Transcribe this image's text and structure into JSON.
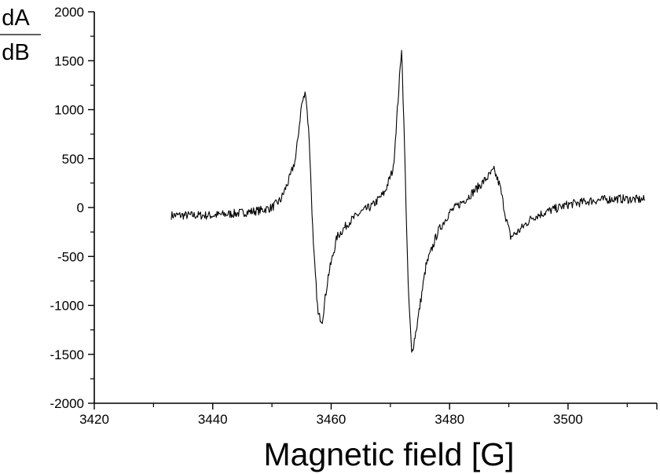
{
  "chart_data": {
    "type": "line",
    "title": "",
    "xlabel": "Magnetic field [G]",
    "ylabel": {
      "numerator": "dA",
      "denominator": "dB"
    },
    "xlim": [
      3420,
      3515
    ],
    "ylim": [
      -2000,
      2000
    ],
    "x_ticks": [
      3420,
      3440,
      3460,
      3480,
      3500
    ],
    "y_ticks": [
      -2000,
      -1500,
      -1000,
      -500,
      0,
      500,
      1000,
      1500,
      2000
    ],
    "grid": false,
    "legend": "none",
    "line_color": "#000000",
    "series": [
      {
        "x": [
          3433,
          3436,
          3440,
          3444,
          3448,
          3450,
          3451.5,
          3453,
          3454,
          3455,
          3455.7,
          3456.3,
          3457,
          3457.8,
          3458.5,
          3459.5,
          3461,
          3463,
          3465,
          3467,
          3469,
          3470.5,
          3471.3,
          3471.9,
          3472.4,
          3473,
          3473.6,
          3474.5,
          3476,
          3478,
          3480,
          3483,
          3485.5,
          3487.5,
          3488.5,
          3489.5,
          3490.3,
          3491.5,
          3494,
          3497,
          3500,
          3504,
          3508,
          3513
        ],
        "y": [
          -80,
          -80,
          -80,
          -60,
          -30,
          0,
          80,
          300,
          500,
          1050,
          1180,
          700,
          -400,
          -1100,
          -1150,
          -700,
          -300,
          -150,
          -50,
          20,
          150,
          400,
          1100,
          1640,
          600,
          -800,
          -1500,
          -1200,
          -600,
          -250,
          -50,
          100,
          250,
          380,
          220,
          -100,
          -300,
          -250,
          -100,
          -30,
          30,
          70,
          90,
          80
        ]
      }
    ]
  }
}
